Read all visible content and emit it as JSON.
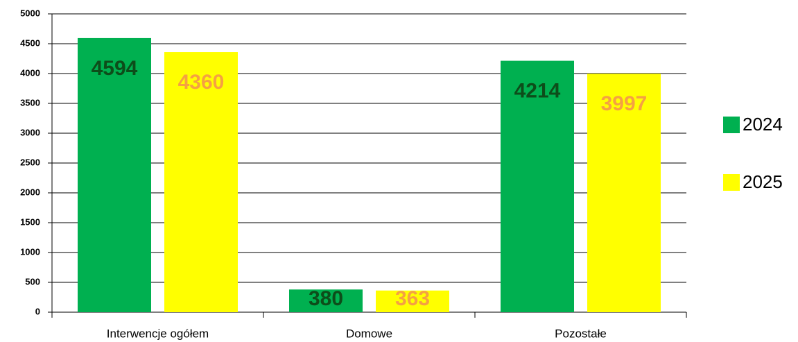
{
  "chart_data": {
    "type": "bar",
    "categories": [
      "Interwencje ogółem",
      "Domowe",
      "Pozostałe"
    ],
    "series": [
      {
        "name": "2024",
        "color": "#00b050",
        "label_color": "#0d4d1a",
        "values": [
          4594,
          380,
          4214
        ]
      },
      {
        "name": "2025",
        "color": "#ffff00",
        "label_color": "#f5a142",
        "values": [
          4360,
          363,
          3997
        ]
      }
    ],
    "ylim": [
      0,
      5000
    ],
    "yticks": [
      0,
      500,
      1000,
      1500,
      2000,
      2500,
      3000,
      3500,
      4000,
      4500,
      5000
    ],
    "grid": true,
    "legend": "right"
  }
}
